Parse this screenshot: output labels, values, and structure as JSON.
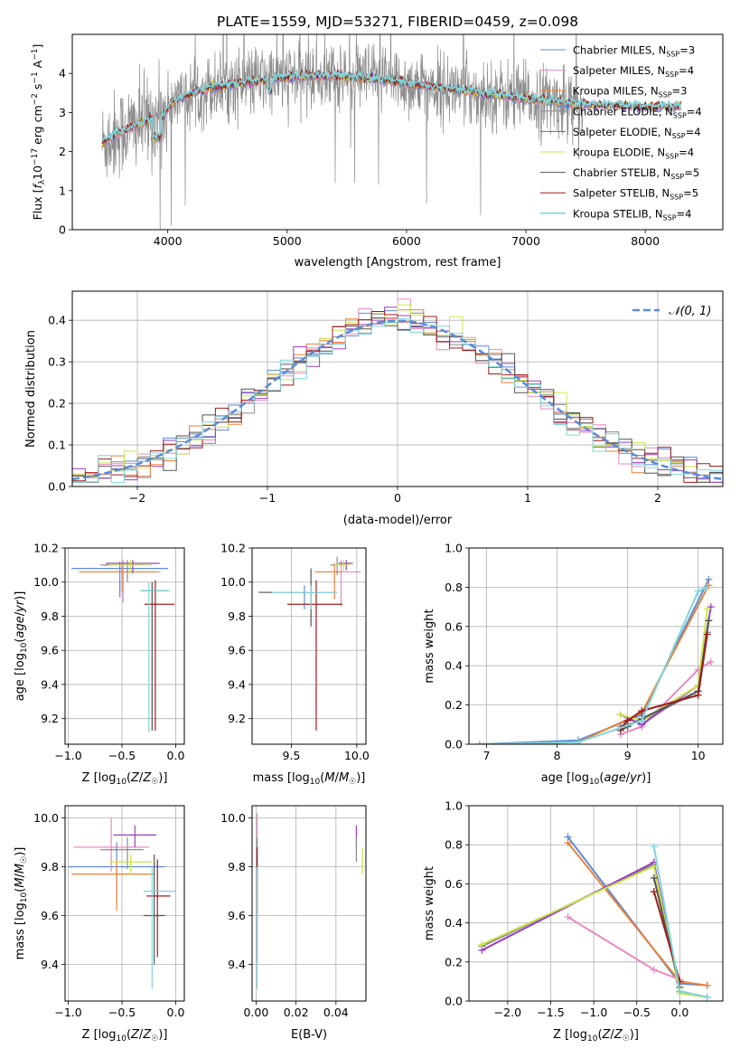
{
  "figure_title": "PLATE=1559, MJD=53271, FIBERID=0459, z=0.098",
  "colors": {
    "ChabrierMILES": "#5b8bd6",
    "SalpeterMILES": "#e88ac1",
    "KroupaMILES": "#e8823a",
    "ChabrierELODIE": "#8b8b8b",
    "SalpeterELODIE": "#9a3fc0",
    "KroupaELODIE": "#c9e64a",
    "ChabrierSTELIB": "#545454",
    "SalpeterSTELIB": "#a01c1c",
    "KroupaSTELIB": "#7fd6dc",
    "normal_curve": "#5b8bd6"
  },
  "legend_spectrum": [
    {
      "prefix": "Chabrier MILES, N",
      "sub": "SSP",
      "suffix": "=3",
      "color_key": "ChabrierMILES"
    },
    {
      "prefix": "Salpeter MILES, N",
      "sub": "SSP",
      "suffix": "=4",
      "color_key": "SalpeterMILES"
    },
    {
      "prefix": "Kroupa MILES, N",
      "sub": "SSP",
      "suffix": "=3",
      "color_key": "KroupaMILES"
    },
    {
      "prefix": "Chabrier ELODIE, N",
      "sub": "SSP",
      "suffix": "=4",
      "color_key": "ChabrierELODIE"
    },
    {
      "prefix": "Salpeter ELODIE, N",
      "sub": "SSP",
      "suffix": "=4",
      "color_key": "SalpeterELODIE"
    },
    {
      "prefix": "Kroupa ELODIE, N",
      "sub": "SSP",
      "suffix": "=4",
      "color_key": "KroupaELODIE"
    },
    {
      "prefix": "Chabrier STELIB, N",
      "sub": "SSP",
      "suffix": "=5",
      "color_key": "ChabrierSTELIB"
    },
    {
      "prefix": "Salpeter STELIB, N",
      "sub": "SSP",
      "suffix": "=5",
      "color_key": "SalpeterSTELIB"
    },
    {
      "prefix": "Kroupa STELIB, N",
      "sub": "SSP",
      "suffix": "=4",
      "color_key": "KroupaSTELIB"
    }
  ],
  "legend_hist": {
    "label": "𝒩(0, 1)"
  },
  "chart_data": [
    {
      "id": "spectrum",
      "type": "line",
      "xlabel": "wavelength [Angstrom, rest frame]",
      "ylabel": "Flux [f_λ 10^-17 erg cm^-2 s^-1 A^-1]",
      "xlim": [
        3200,
        8650
      ],
      "ylim": [
        0,
        5
      ],
      "xticks": [
        4000,
        5000,
        6000,
        7000,
        8000
      ],
      "yticks": [
        0,
        1,
        2,
        3,
        4
      ],
      "grid": false,
      "legend": "right",
      "data_noise_amplitude": 0.45,
      "continuum": [
        [
          3450,
          2.2
        ],
        [
          3600,
          2.5
        ],
        [
          3800,
          2.75
        ],
        [
          3950,
          2.9
        ],
        [
          4050,
          3.3
        ],
        [
          4300,
          3.6
        ],
        [
          4600,
          3.75
        ],
        [
          5000,
          3.9
        ],
        [
          5300,
          3.95
        ],
        [
          5600,
          3.9
        ],
        [
          6000,
          3.75
        ],
        [
          6500,
          3.55
        ],
        [
          7000,
          3.35
        ],
        [
          7500,
          3.2
        ],
        [
          8000,
          3.15
        ],
        [
          8300,
          3.15
        ]
      ],
      "model_range": [
        3450,
        8300
      ],
      "data_range": [
        3450,
        7480
      ]
    },
    {
      "id": "residual_histogram",
      "type": "histogram",
      "xlabel": "(data-model)/error",
      "ylabel": "Normed distribution",
      "xlim": [
        -2.5,
        2.5
      ],
      "ylim": [
        0,
        0.47
      ],
      "xticks": [
        -2,
        -1,
        0,
        1,
        2
      ],
      "yticks": [
        0.0,
        0.1,
        0.2,
        0.3,
        0.4
      ],
      "grid": true,
      "legend": "top-right",
      "bin_width": 0.1,
      "bin_start": -2.5
    },
    {
      "id": "age_vs_Z",
      "type": "errorbar",
      "xlabel": "Z [log10(Z/Z☉)]",
      "ylabel": "age [log10(age/yr)]",
      "xlim": [
        -1.03,
        0.08
      ],
      "ylim": [
        9.05,
        10.2
      ],
      "xticks": [
        -1.0,
        -0.5,
        0.0
      ],
      "yticks": [
        9.2,
        9.4,
        9.6,
        9.8,
        10.0,
        10.2
      ],
      "grid": true,
      "points": [
        {
          "series": "ChabrierMILES",
          "x": -0.52,
          "xerr": [
            0.45,
            0.45
          ],
          "y": 10.08,
          "yerr": [
            0.17,
            0.04
          ]
        },
        {
          "series": "SalpeterMILES",
          "x": -0.49,
          "xerr": [
            0.4,
            0.35
          ],
          "y": 10.06,
          "yerr": [
            0.18,
            0.07
          ]
        },
        {
          "series": "KroupaMILES",
          "x": -0.5,
          "xerr": [
            0.4,
            0.33
          ],
          "y": 10.06,
          "yerr": [
            0.12,
            0.05
          ]
        },
        {
          "series": "ChabrierELODIE",
          "x": -0.45,
          "xerr": [
            0.25,
            0.15
          ],
          "y": 10.1,
          "yerr": [
            0.1,
            0.03
          ]
        },
        {
          "series": "SalpeterELODIE",
          "x": -0.4,
          "xerr": [
            0.25,
            0.25
          ],
          "y": 10.11,
          "yerr": [
            0.06,
            0.02
          ]
        },
        {
          "series": "KroupaELODIE",
          "x": -0.42,
          "xerr": [
            0.2,
            0.2
          ],
          "y": 10.1,
          "yerr": [
            0.05,
            0.03
          ]
        },
        {
          "series": "ChabrierSTELIB",
          "x": -0.22,
          "xerr": [
            0.1,
            0.15
          ],
          "y": 9.95,
          "yerr": [
            0.82,
            0.05
          ]
        },
        {
          "series": "SalpeterSTELIB",
          "x": -0.19,
          "xerr": [
            0.1,
            0.18
          ],
          "y": 9.87,
          "yerr": [
            0.74,
            0.14
          ]
        },
        {
          "series": "KroupaSTELIB",
          "x": -0.25,
          "xerr": [
            0.08,
            0.2
          ],
          "y": 9.95,
          "yerr": [
            0.83,
            0.05
          ]
        }
      ]
    },
    {
      "id": "age_vs_mass",
      "type": "errorbar",
      "xlabel": "mass [log10(M/M☉)]",
      "ylabel": "",
      "xlim": [
        9.2,
        10.07
      ],
      "ylim": [
        9.05,
        10.2
      ],
      "xticks": [
        9.5,
        10.0
      ],
      "yticks": [
        9.2,
        9.4,
        9.6,
        9.8,
        10.0,
        10.2
      ],
      "grid": true,
      "points": [
        {
          "series": "ChabrierMILES",
          "x": 9.6,
          "xerr": [
            0.32,
            0.2
          ],
          "y": 9.94,
          "yerr": [
            0.1,
            0.04
          ]
        },
        {
          "series": "SalpeterMILES",
          "x": 9.88,
          "xerr": [
            0.1,
            0.15
          ],
          "y": 10.06,
          "yerr": [
            0.2,
            0.07
          ]
        },
        {
          "series": "KroupaMILES",
          "x": 9.83,
          "xerr": [
            0.15,
            0.05
          ],
          "y": 10.06,
          "yerr": [
            0.16,
            0.05
          ]
        },
        {
          "series": "ChabrierELODIE",
          "x": 9.85,
          "xerr": [
            0.05,
            0.05
          ],
          "y": 10.1,
          "yerr": [
            0.06,
            0.05
          ]
        },
        {
          "series": "SalpeterELODIE",
          "x": 9.92,
          "xerr": [
            0.06,
            0.05
          ],
          "y": 10.11,
          "yerr": [
            0.04,
            0.02
          ]
        },
        {
          "series": "KroupaELODIE",
          "x": 9.9,
          "xerr": [
            0.07,
            0.05
          ],
          "y": 10.1,
          "yerr": [
            0.04,
            0.03
          ]
        },
        {
          "series": "ChabrierSTELIB",
          "x": 9.65,
          "xerr": [
            0.4,
            0.2
          ],
          "y": 9.94,
          "yerr": [
            0.2,
            0.14
          ]
        },
        {
          "series": "SalpeterSTELIB",
          "x": 9.69,
          "xerr": [
            0.22,
            0.2
          ],
          "y": 9.87,
          "yerr": [
            0.74,
            0.14
          ]
        },
        {
          "series": "KroupaSTELIB",
          "x": 9.65,
          "xerr": [
            0.3,
            0.2
          ],
          "y": 9.94,
          "yerr": [
            0.1,
            0.04
          ]
        }
      ]
    },
    {
      "id": "massweight_vs_age",
      "type": "line",
      "xlabel": "age [log10(age/yr)]",
      "ylabel": "mass weight",
      "xlim": [
        6.75,
        10.35
      ],
      "ylim": [
        0,
        1
      ],
      "xticks": [
        7,
        8,
        9,
        10
      ],
      "yticks": [
        0.0,
        0.2,
        0.4,
        0.6,
        0.8,
        1.0
      ],
      "grid": true,
      "series": [
        {
          "name": "ChabrierMILES",
          "x": [
            6.9,
            8.3,
            9.2,
            10.15
          ],
          "y": [
            0.0,
            0.02,
            0.15,
            0.84
          ]
        },
        {
          "name": "SalpeterMILES",
          "x": [
            8.9,
            9.2,
            10.0,
            10.18
          ],
          "y": [
            0.05,
            0.09,
            0.38,
            0.42
          ]
        },
        {
          "name": "KroupaMILES",
          "x": [
            6.9,
            8.3,
            9.2,
            10.15
          ],
          "y": [
            0.0,
            0.01,
            0.16,
            0.81
          ]
        },
        {
          "name": "ChabrierELODIE",
          "x": [
            8.9,
            9.2,
            10.0,
            10.13
          ],
          "y": [
            0.09,
            0.12,
            0.27,
            0.57
          ]
        },
        {
          "name": "SalpeterELODIE",
          "x": [
            8.9,
            9.2,
            10.0,
            10.18
          ],
          "y": [
            0.15,
            0.1,
            0.3,
            0.7
          ]
        },
        {
          "name": "KroupaELODIE",
          "x": [
            8.9,
            9.2,
            10.0,
            10.13
          ],
          "y": [
            0.15,
            0.12,
            0.3,
            0.69
          ]
        },
        {
          "name": "ChabrierSTELIB",
          "x": [
            8.9,
            9.0,
            9.2,
            10.0,
            10.15
          ],
          "y": [
            0.07,
            0.09,
            0.13,
            0.27,
            0.63
          ]
        },
        {
          "name": "SalpeterSTELIB",
          "x": [
            8.9,
            9.0,
            9.2,
            10.0,
            10.13
          ],
          "y": [
            0.08,
            0.12,
            0.17,
            0.25,
            0.56
          ]
        },
        {
          "name": "KroupaSTELIB",
          "x": [
            6.9,
            8.3,
            9.2,
            10.0,
            10.12
          ],
          "y": [
            0.0,
            0.01,
            0.12,
            0.78,
            0.8
          ]
        }
      ]
    },
    {
      "id": "mass_vs_Z",
      "type": "errorbar",
      "xlabel": "Z [log10(Z/Z☉)]",
      "ylabel": "mass [log10(M/M☉)]",
      "xlim": [
        -1.03,
        0.08
      ],
      "ylim": [
        9.25,
        10.05
      ],
      "xticks": [
        -1.0,
        -0.5,
        0.0
      ],
      "yticks": [
        9.4,
        9.6,
        9.8,
        10.0
      ],
      "grid": true,
      "points": [
        {
          "series": "ChabrierMILES",
          "x": -0.55,
          "xerr": [
            0.45,
            0.45
          ],
          "y": 9.8,
          "yerr": [
            0.15,
            0.1
          ]
        },
        {
          "series": "SalpeterMILES",
          "x": -0.6,
          "xerr": [
            0.35,
            0.35
          ],
          "y": 9.88,
          "yerr": [
            0.1,
            0.12
          ]
        },
        {
          "series": "KroupaMILES",
          "x": -0.55,
          "xerr": [
            0.42,
            0.35
          ],
          "y": 9.77,
          "yerr": [
            0.15,
            0.06
          ]
        },
        {
          "series": "ChabrierELODIE",
          "x": -0.45,
          "xerr": [
            0.25,
            0.15
          ],
          "y": 9.87,
          "yerr": [
            0.08,
            0.05
          ]
        },
        {
          "series": "SalpeterELODIE",
          "x": -0.38,
          "xerr": [
            0.2,
            0.2
          ],
          "y": 9.93,
          "yerr": [
            0.05,
            0.04
          ]
        },
        {
          "series": "KroupaELODIE",
          "x": -0.42,
          "xerr": [
            0.2,
            0.2
          ],
          "y": 9.82,
          "yerr": [
            0.05,
            0.03
          ]
        },
        {
          "series": "ChabrierSTELIB",
          "x": -0.2,
          "xerr": [
            0.1,
            0.1
          ],
          "y": 9.6,
          "yerr": [
            0.2,
            0.25
          ]
        },
        {
          "series": "SalpeterSTELIB",
          "x": -0.17,
          "xerr": [
            0.1,
            0.12
          ],
          "y": 9.68,
          "yerr": [
            0.25,
            0.15
          ]
        },
        {
          "series": "KroupaSTELIB",
          "x": -0.22,
          "xerr": [
            0.08,
            0.22
          ],
          "y": 9.7,
          "yerr": [
            0.4,
            0.1
          ]
        }
      ]
    },
    {
      "id": "mass_vs_EBV",
      "type": "errorbar",
      "xlabel": "E(B-V)",
      "ylabel": "",
      "xlim": [
        -0.002,
        0.055
      ],
      "ylim": [
        9.25,
        10.05
      ],
      "xticks": [
        0.0,
        0.02,
        0.04
      ],
      "yticks": [
        9.4,
        9.6,
        9.8,
        10.0
      ],
      "grid": true,
      "points": [
        {
          "series": "ChabrierMILES",
          "x": 0.0005,
          "xerr": [
            0,
            0
          ],
          "y": 9.8,
          "yerr": [
            0.15,
            0.1
          ]
        },
        {
          "series": "SalpeterMILES",
          "x": 0.0005,
          "xerr": [
            0,
            0
          ],
          "y": 9.88,
          "yerr": [
            0.1,
            0.14
          ]
        },
        {
          "series": "KroupaMILES",
          "x": 0.0005,
          "xerr": [
            0,
            0
          ],
          "y": 9.77,
          "yerr": [
            0.15,
            0.06
          ]
        },
        {
          "series": "ChabrierELODIE",
          "x": 0.0005,
          "xerr": [
            0,
            0
          ],
          "y": 9.87,
          "yerr": [
            0.08,
            0.05
          ]
        },
        {
          "series": "SalpeterELODIE",
          "x": 0.0502,
          "xerr": [
            0,
            0
          ],
          "y": 9.93,
          "yerr": [
            0.05,
            0.04
          ]
        },
        {
          "series": "KroupaELODIE",
          "x": 0.0532,
          "xerr": [
            0,
            0
          ],
          "y": 9.82,
          "yerr": [
            0.05,
            0.06
          ]
        },
        {
          "series": "ChabrierSTELIB",
          "x": 0.0005,
          "xerr": [
            0,
            0
          ],
          "y": 9.6,
          "yerr": [
            0.2,
            0.25
          ]
        },
        {
          "series": "SalpeterSTELIB",
          "x": 0.0005,
          "xerr": [
            0,
            0
          ],
          "y": 9.68,
          "yerr": [
            0.25,
            0.2
          ]
        },
        {
          "series": "KroupaSTELIB",
          "x": 0.0005,
          "xerr": [
            0,
            0
          ],
          "y": 9.7,
          "yerr": [
            0.4,
            0.1
          ]
        },
        {
          "series": "ChabrierELODIE",
          "x": 0.0502,
          "xerr": [
            0,
            0
          ],
          "y": 9.87,
          "yerr": [
            0.05,
            0.05
          ]
        }
      ]
    },
    {
      "id": "massweight_vs_Z",
      "type": "line",
      "xlabel": "Z [log10(Z/Z☉)]",
      "ylabel": "mass weight",
      "xlim": [
        -2.45,
        0.5
      ],
      "ylim": [
        0,
        1
      ],
      "xticks": [
        -2.0,
        -1.5,
        -1.0,
        -0.5,
        0.0
      ],
      "yticks": [
        0.0,
        0.2,
        0.4,
        0.6,
        0.8,
        1.0
      ],
      "grid": true,
      "series": [
        {
          "name": "ChabrierMILES",
          "x": [
            -1.3,
            0.0,
            0.32
          ],
          "y": [
            0.84,
            0.09,
            0.08
          ]
        },
        {
          "name": "SalpeterMILES",
          "x": [
            -1.3,
            -0.3,
            0.0
          ],
          "y": [
            0.43,
            0.16,
            0.11
          ]
        },
        {
          "name": "KroupaMILES",
          "x": [
            -1.3,
            0.0,
            0.32
          ],
          "y": [
            0.81,
            0.1,
            0.08
          ]
        },
        {
          "name": "ChabrierELODIE",
          "x": [
            -2.3,
            -0.3,
            0.0,
            0.32
          ],
          "y": [
            0.28,
            0.7,
            0.04,
            0.02
          ]
        },
        {
          "name": "SalpeterELODIE",
          "x": [
            -2.3,
            -0.3,
            0.0,
            0.32
          ],
          "y": [
            0.26,
            0.71,
            0.05,
            0.02
          ]
        },
        {
          "name": "KroupaELODIE",
          "x": [
            -2.3,
            -0.3,
            0.0,
            0.32
          ],
          "y": [
            0.29,
            0.69,
            0.04,
            0.02
          ]
        },
        {
          "name": "ChabrierSTELIB",
          "x": [
            -0.3,
            0.0
          ],
          "y": [
            0.63,
            0.07
          ]
        },
        {
          "name": "SalpeterSTELIB",
          "x": [
            -0.3,
            0.0
          ],
          "y": [
            0.56,
            0.1
          ]
        },
        {
          "name": "KroupaSTELIB",
          "x": [
            -0.3,
            0.0,
            0.32
          ],
          "y": [
            0.79,
            0.05,
            0.02
          ]
        }
      ]
    }
  ]
}
